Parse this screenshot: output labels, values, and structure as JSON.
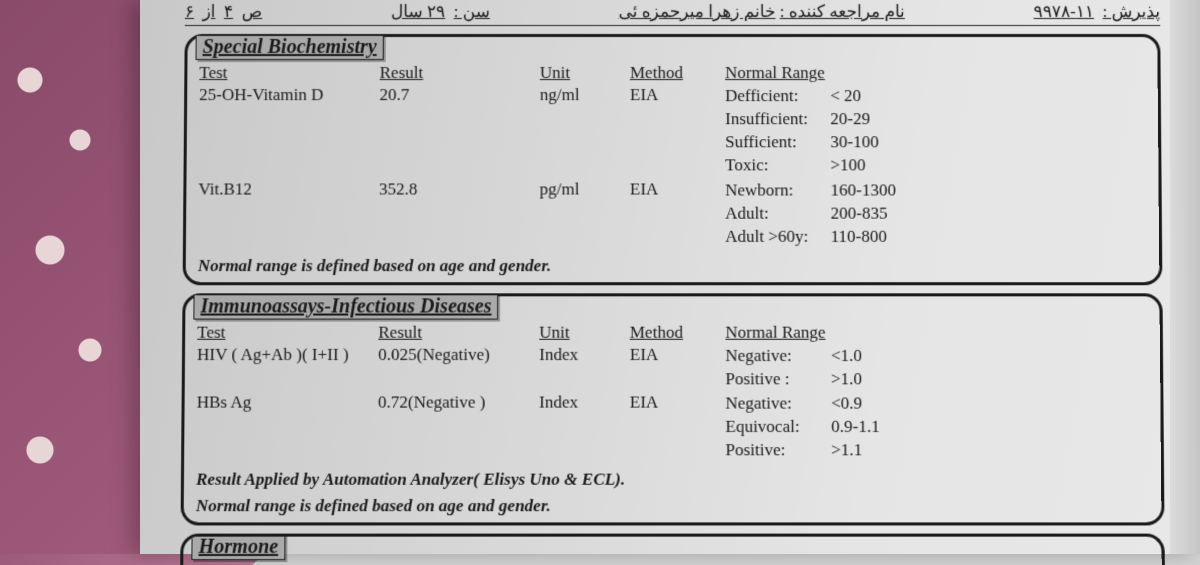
{
  "header": {
    "admission_label": "پذیرش :",
    "admission_no": "۱۱-۹۹۷۸",
    "patient_label": "نام مراجعه کننده :",
    "patient_name": "خانم زهرا میرحمزه ئی",
    "age_label": "سن :",
    "age_value": "۲۹ سال",
    "page_label": "ص",
    "page_num": "۴",
    "of_label": "از",
    "page_total": "۶"
  },
  "section1": {
    "title": "Special Biochemistry",
    "headers": {
      "test": "Test",
      "result": "Result",
      "unit": "Unit",
      "method": "Method",
      "range": "Normal Range"
    },
    "rows": [
      {
        "test": "25-OH-Vitamin D",
        "result": "20.7",
        "unit": "ng/ml",
        "method": "EIA",
        "range_rows": [
          {
            "k": "Defficient:",
            "v": "< 20"
          },
          {
            "k": "Insufficient:",
            "v": "20-29"
          },
          {
            "k": "Sufficient:",
            "v": "30-100"
          },
          {
            "k": "Toxic:",
            "v": ">100"
          }
        ]
      },
      {
        "test": "Vit.B12",
        "result": "352.8",
        "unit": "pg/ml",
        "method": "EIA",
        "range_rows": [
          {
            "k": "Newborn:",
            "v": "160-1300"
          },
          {
            "k": "Adult:",
            "v": "200-835"
          },
          {
            "k": "Adult >60y:",
            "v": "110-800"
          }
        ]
      }
    ],
    "note": "Normal range is defined based on age and gender."
  },
  "section2": {
    "title": "Immunoassays-Infectious Diseases",
    "headers": {
      "test": "Test",
      "result": "Result",
      "unit": "Unit",
      "method": "Method",
      "range": "Normal Range"
    },
    "rows": [
      {
        "test": "HIV ( Ag+Ab )( I+II )",
        "result": "0.025(Negative)",
        "unit": "Index",
        "method": "EIA",
        "range_rows": [
          {
            "k": "Negative:",
            "v": "<1.0"
          },
          {
            "k": "Positive :",
            "v": ">1.0"
          }
        ]
      },
      {
        "test": "HBs Ag",
        "result": "0.72(Negative )",
        "unit": "Index",
        "method": "EIA",
        "range_rows": [
          {
            "k": "Negative:",
            "v": "<0.9"
          },
          {
            "k": "Equivocal:",
            "v": "0.9-1.1"
          },
          {
            "k": "Positive:",
            "v": ">1.1"
          }
        ]
      }
    ],
    "note1": "Result Applied by Automation Analyzer( Elisys Uno & ECL).",
    "note2": "Normal range is defined based on age and gender."
  },
  "section3": {
    "title": "Hormone"
  }
}
